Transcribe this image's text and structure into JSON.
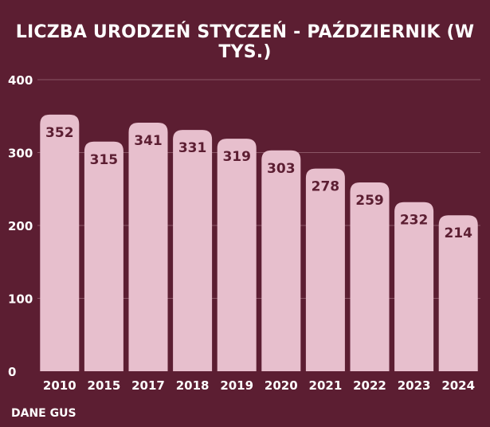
{
  "chart_data": {
    "type": "bar",
    "title": "LICZBA URODZEŃ STYCZEŃ - PAŹDZIERNIK (W TYS.)",
    "categories": [
      "2010",
      "2015",
      "2017",
      "2018",
      "2019",
      "2020",
      "2021",
      "2022",
      "2023",
      "2024"
    ],
    "values": [
      352,
      315,
      341,
      331,
      319,
      303,
      278,
      259,
      232,
      214
    ],
    "ylim": [
      0,
      400
    ],
    "yticks": [
      0,
      100,
      200,
      300,
      400
    ],
    "grid": true,
    "data_labels": true
  },
  "source": "DANE GUS",
  "colors": {
    "background": "#5c1e32",
    "bar": "#e7bfcd",
    "label": "#5c1e32",
    "text": "#ffffff",
    "grid": "#8a5566"
  }
}
